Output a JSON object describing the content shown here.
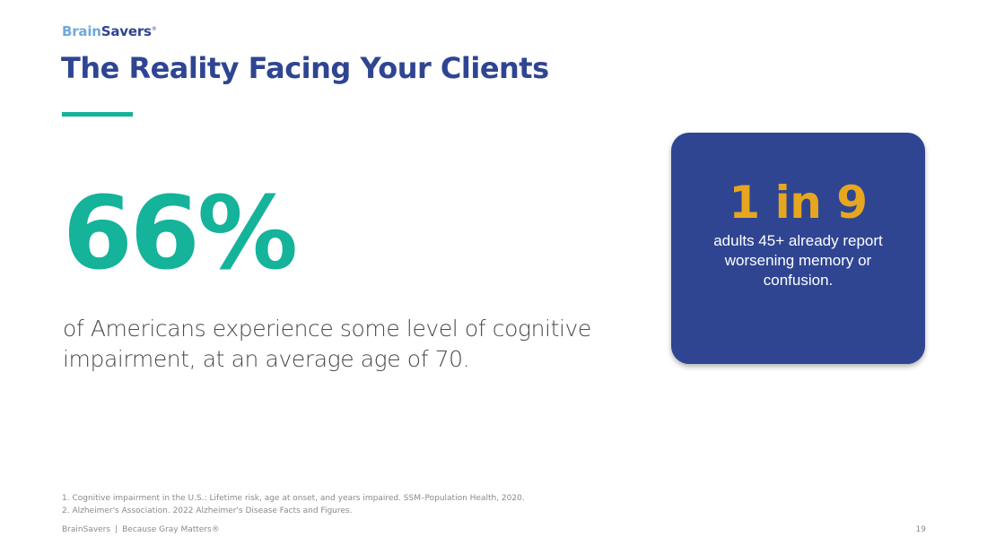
{
  "logo": {
    "part1": "Brain",
    "part2": "Savers",
    "mark": "®"
  },
  "title": "The Reality Facing Your Clients",
  "main_stat": {
    "value": "66%",
    "description": "of Americans experience some level of cognitive impairment, at an average age of 70."
  },
  "callout": {
    "value": "1 in 9",
    "description": "adults 45+ already report worsening memory or confusion."
  },
  "footnotes": [
    "1. Cognitive impairment in the U.S.: Lifetime risk, age at onset, and years impaired. SSM–Population Health, 2020.",
    "2. Alzheimer's Association. 2022 Alzheimer's Disease Facts and Figures."
  ],
  "footer": {
    "brand": "BrainSavers",
    "separator": "|",
    "tagline": "Because Gray Matters®",
    "page_number": "19"
  },
  "colors": {
    "navy": "#2f4592",
    "teal": "#14b39a",
    "gold": "#e6a620",
    "light_blue": "#6fa8dc"
  }
}
